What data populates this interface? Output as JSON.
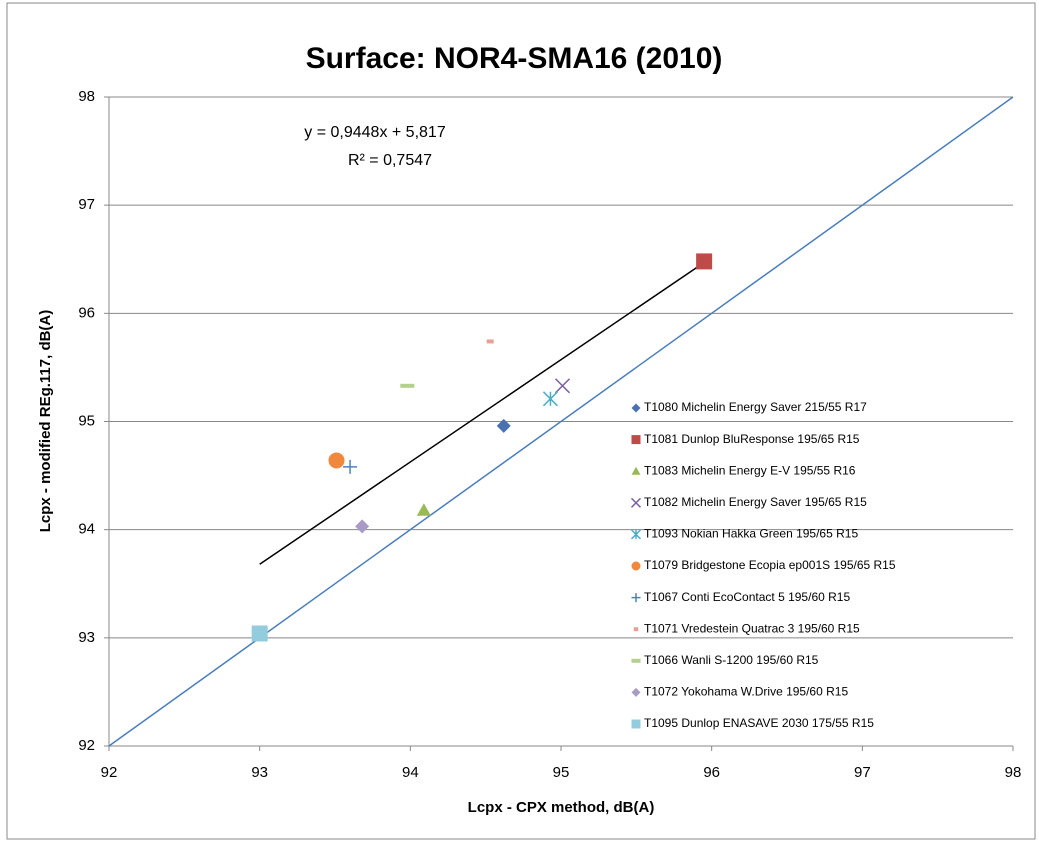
{
  "chart_data": {
    "type": "scatter",
    "title": "Surface: NOR4-SMA16 (2010)",
    "xlabel": "Lcpx - CPX method, dB(A)",
    "ylabel": "Lcpx - modified REg.117, dB(A)",
    "annotations": [
      "y = 0,9448x + 5,817",
      "R² = 0,7547"
    ],
    "xlim": [
      92,
      98
    ],
    "ylim": [
      92,
      98
    ],
    "xticks": [
      92,
      93,
      94,
      95,
      96,
      97,
      98
    ],
    "yticks": [
      92,
      93,
      94,
      95,
      96,
      97,
      98
    ],
    "grid": true,
    "series": [
      {
        "name": "T1080  Michelin Energy Saver 215/55 R17",
        "color": "#4a72b0",
        "marker": "diamond",
        "x": [
          94.62
        ],
        "values": [
          94.96
        ]
      },
      {
        "name": "T1081  Dunlop BluResponse 195/65 R15",
        "color": "#be4b48",
        "marker": "square",
        "x": [
          95.95
        ],
        "values": [
          96.48
        ]
      },
      {
        "name": "T1083  Michelin Energy E-V 195/55 R16",
        "color": "#98b954",
        "marker": "triangle",
        "x": [
          94.09
        ],
        "values": [
          94.18
        ]
      },
      {
        "name": "T1082  Michelin Energy Saver 195/65 R15",
        "color": "#7e62a1",
        "marker": "cross",
        "x": [
          95.01
        ],
        "values": [
          95.33
        ]
      },
      {
        "name": "T1093  Nokian Hakka Green 195/65 R15",
        "color": "#4bacc6",
        "marker": "star",
        "x": [
          94.93
        ],
        "values": [
          95.21
        ]
      },
      {
        "name": "T1079  Bridgestone Ecopia ep001S 195/65 R15",
        "color": "#f0883e",
        "marker": "circle",
        "x": [
          93.51
        ],
        "values": [
          94.64
        ]
      },
      {
        "name": "T1067  Conti EcoContact 5 195/60 R15",
        "color": "#4f81bd",
        "marker": "plus",
        "x": [
          93.6
        ],
        "values": [
          94.58
        ]
      },
      {
        "name": "T1071  Vredestein Quatrac 3 195/60 R15",
        "color": "#e6a195",
        "marker": "shortdash",
        "x": [
          94.53
        ],
        "values": [
          95.74
        ]
      },
      {
        "name": "T1066  Wanli S-1200 195/60 R15",
        "color": "#b5cf8f",
        "marker": "dash",
        "x": [
          93.98
        ],
        "values": [
          95.33
        ]
      },
      {
        "name": "T1072  Yokohama W.Drive 195/60 R15",
        "color": "#a99bc7",
        "marker": "diamond",
        "x": [
          93.68
        ],
        "values": [
          94.03
        ]
      },
      {
        "name": "T1095  Dunlop ENASAVE 2030 175/55 R15",
        "color": "#93cddd",
        "marker": "square",
        "x": [
          93.0
        ],
        "values": [
          93.04
        ]
      }
    ],
    "lines": [
      {
        "color": "#000000",
        "x": [
          93.0,
          95.95
        ],
        "values": [
          93.68,
          96.47
        ]
      },
      {
        "color": "#4a7ebb",
        "x": [
          92,
          98
        ],
        "values": [
          92,
          98
        ]
      }
    ]
  }
}
